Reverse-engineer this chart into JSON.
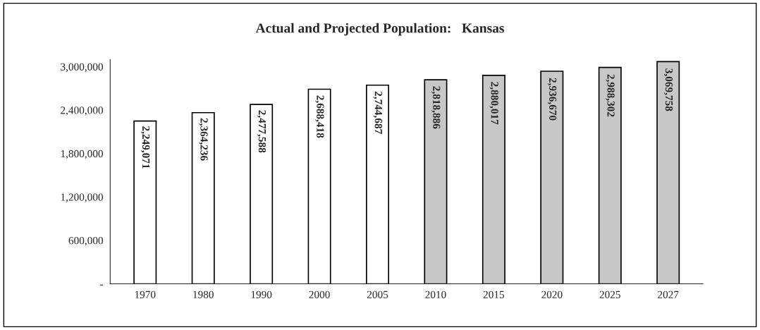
{
  "chart_data": {
    "type": "bar",
    "title": "Actual and Projected Population:   Kansas",
    "categories": [
      "1970",
      "1980",
      "1990",
      "2000",
      "2005",
      "2010",
      "2015",
      "2020",
      "2025",
      "2027"
    ],
    "values": [
      2249071,
      2364236,
      2477588,
      2688418,
      2744687,
      2818886,
      2880017,
      2936670,
      2988302,
      3069758
    ],
    "colors": [
      "#ffffff",
      "#ffffff",
      "#ffffff",
      "#ffffff",
      "#ffffff",
      "#c8c8c8",
      "#c8c8c8",
      "#c8c8c8",
      "#c8c8c8",
      "#c8c8c8"
    ],
    "value_labels": [
      "2,249,071",
      "2,364,236",
      "2,477,588",
      "2,688,418",
      "2,744,687",
      "2,818,886",
      "2,880,017",
      "2,936,670",
      "2,988,302",
      "3,069,758"
    ],
    "ylim": [
      0,
      3100000
    ],
    "yticks": [
      {
        "value": 0,
        "label": "-"
      },
      {
        "value": 600000,
        "label": "600,000"
      },
      {
        "value": 1200000,
        "label": "1,200,000"
      },
      {
        "value": 1800000,
        "label": "1,800,000"
      },
      {
        "value": 2400000,
        "label": "2,400,000"
      },
      {
        "value": 3000000,
        "label": "3,000,000"
      }
    ],
    "grid": false,
    "legend": false
  }
}
